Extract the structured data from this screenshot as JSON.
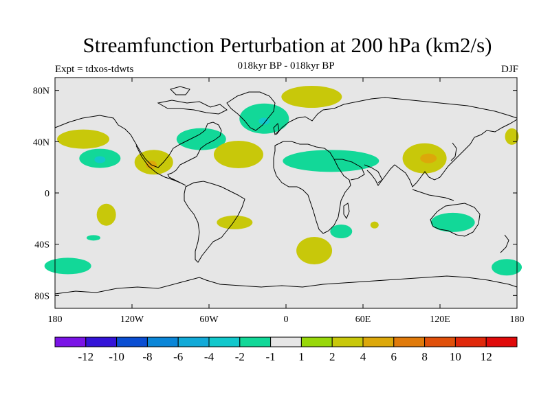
{
  "header": {
    "title": "Streamfunction Perturbation at 200 hPa (km2/s)",
    "subtitle": "018kyr BP - 018kyr BP",
    "left_string": "Expt = tdxos-tdwts",
    "right_string": "DJF"
  },
  "map": {
    "projection": "cylindrical-equidistant",
    "background_color": "#e6e6e6",
    "coastline_color": "#000000",
    "lon_range": [
      -180,
      180
    ],
    "lat_range": [
      -90,
      90
    ],
    "x_ticks": [
      {
        "value": -180,
        "label": "180"
      },
      {
        "value": -120,
        "label": "120W"
      },
      {
        "value": -60,
        "label": "60W"
      },
      {
        "value": 0,
        "label": "0"
      },
      {
        "value": 60,
        "label": "60E"
      },
      {
        "value": 120,
        "label": "120E"
      },
      {
        "value": 180,
        "label": "180"
      }
    ],
    "y_ticks": [
      {
        "value": 80,
        "label": "80N"
      },
      {
        "value": 40,
        "label": "40N"
      },
      {
        "value": 0,
        "label": "0"
      },
      {
        "value": -40,
        "label": "40S"
      },
      {
        "value": -80,
        "label": "80S"
      }
    ],
    "anomalies": [
      {
        "lon": -158,
        "lat": 42,
        "level": 2
      },
      {
        "lon": -145,
        "lat": 27,
        "level": -2
      },
      {
        "lon": -145,
        "lat": 26,
        "level": -4
      },
      {
        "lon": -140,
        "lat": -17,
        "level": 2
      },
      {
        "lon": -150,
        "lat": -35,
        "level": -2
      },
      {
        "lon": -170,
        "lat": -57,
        "level": -2
      },
      {
        "lon": -103,
        "lat": 24,
        "level": 2
      },
      {
        "lon": -105,
        "lat": 22,
        "level": 4
      },
      {
        "lon": -66,
        "lat": 42,
        "level": -2
      },
      {
        "lon": -37,
        "lat": 30,
        "level": 2
      },
      {
        "lon": -40,
        "lat": -23,
        "level": 2
      },
      {
        "lon": -17,
        "lat": 58,
        "level": -2
      },
      {
        "lon": -17,
        "lat": 56,
        "level": -4
      },
      {
        "lon": 20,
        "lat": 75,
        "level": 2
      },
      {
        "lon": 35,
        "lat": 25,
        "level": -2
      },
      {
        "lon": 22,
        "lat": -45,
        "level": 2
      },
      {
        "lon": 43,
        "lat": -30,
        "level": -2
      },
      {
        "lon": 69,
        "lat": -25,
        "level": 2
      },
      {
        "lon": 108,
        "lat": 27,
        "level": 2
      },
      {
        "lon": 111,
        "lat": 27,
        "level": 4
      },
      {
        "lon": 130,
        "lat": -23,
        "level": -2
      },
      {
        "lon": 176,
        "lat": 44,
        "level": 2
      },
      {
        "lon": 172,
        "lat": -58,
        "level": -2
      }
    ]
  },
  "colorbar": {
    "colors": [
      "#7a14e6",
      "#3414d8",
      "#0a4ed2",
      "#0a86d8",
      "#12aad8",
      "#12c8cc",
      "#12d898",
      "#e6e6e6",
      "#98d80a",
      "#c8c80a",
      "#dca80a",
      "#e07a0a",
      "#e0500a",
      "#e0280a",
      "#e00a0a"
    ],
    "labels": [
      "-12",
      "-10",
      "-8",
      "-6",
      "-4",
      "-2",
      "-1",
      "1",
      "2",
      "4",
      "6",
      "8",
      "10",
      "12"
    ]
  }
}
